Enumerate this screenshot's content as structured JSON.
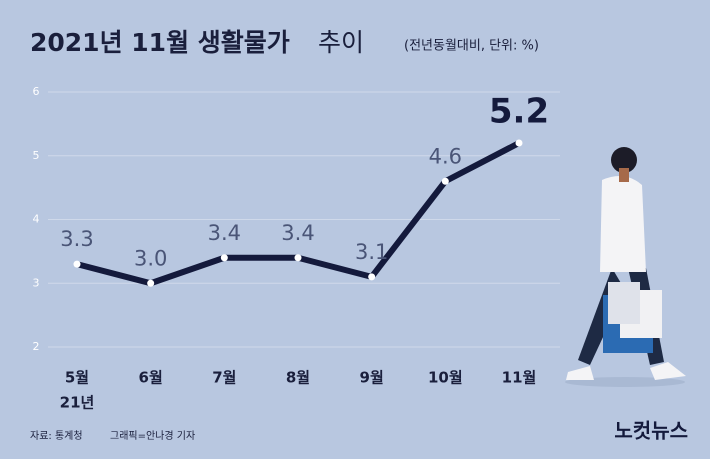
{
  "chart_data": {
    "type": "line",
    "title": "2021년 11월 생활물가",
    "title_suffix": "추이",
    "subtitle": "(전년동월대비, 단위: %)",
    "categories": [
      "5월",
      "6월",
      "7월",
      "8월",
      "9월",
      "10월",
      "11월"
    ],
    "year_label": "21년",
    "values": [
      3.3,
      3.0,
      3.4,
      3.4,
      3.1,
      4.6,
      5.2
    ],
    "value_labels": [
      "3.3",
      "3.0",
      "3.4",
      "3.4",
      "3.1",
      "4.6",
      "5.2"
    ],
    "color": "#141a3c",
    "ylim": [
      2,
      6
    ],
    "yticks": [
      2,
      3,
      4,
      5,
      6
    ],
    "grid": true,
    "source": "자료: 통계청",
    "credit": "그래픽=안나경 기자",
    "logo": "노컷뉴스"
  }
}
